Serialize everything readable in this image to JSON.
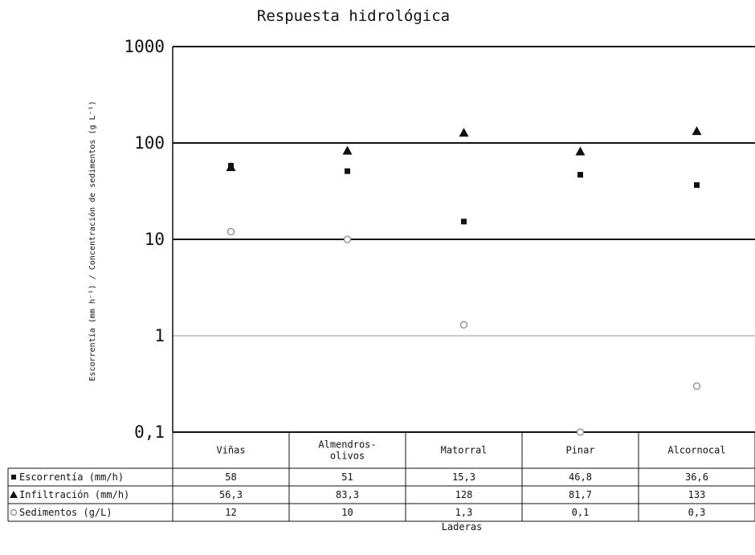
{
  "chart_data": {
    "type": "scatter",
    "title": "Respuesta hidrológica",
    "ylabel": "Escorrentía (mm h⁻¹) / Concentración de sedimentos (g L⁻¹)",
    "xlabel": "Laderas",
    "yscale": "log",
    "ylim": [
      0.1,
      1000
    ],
    "yticks": [
      {
        "value": 1000,
        "label": "1000"
      },
      {
        "value": 100,
        "label": "100"
      },
      {
        "value": 10,
        "label": "10"
      },
      {
        "value": 1,
        "label": "1"
      },
      {
        "value": 0.1,
        "label": "0,1"
      }
    ],
    "categories": [
      "Viñas",
      "Almendros-olivos",
      "Matorral",
      "Pinar",
      "Alcornocal"
    ],
    "category_lines": [
      [
        "Viñas"
      ],
      [
        "Almendros-",
        "olivos"
      ],
      [
        "Matorral"
      ],
      [
        "Pinar"
      ],
      [
        "Alcornocal"
      ]
    ],
    "series": [
      {
        "name": "Escorrentía (mm/h)",
        "marker": "square",
        "values": [
          58,
          51,
          15.3,
          46.8,
          36.6
        ],
        "labels": [
          "58",
          "51",
          "15,3",
          "46,8",
          "36,6"
        ]
      },
      {
        "name": "Infiltración (mm/h)",
        "marker": "triangle",
        "values": [
          56.3,
          83.3,
          128,
          81.7,
          133
        ],
        "labels": [
          "56,3",
          "83,3",
          "128",
          "81,7",
          "133"
        ]
      },
      {
        "name": "Sedimentos (g/L)",
        "marker": "circle-open",
        "values": [
          12,
          10,
          1.3,
          0.1,
          0.3
        ],
        "labels": [
          "12",
          "10",
          "1,3",
          "0,1",
          "0,3"
        ]
      }
    ],
    "grid": "horizontal at decades",
    "legend": "data table below plot",
    "colors": {
      "marker": "#111111",
      "circle": "#888888",
      "gridline": "#999999"
    }
  }
}
